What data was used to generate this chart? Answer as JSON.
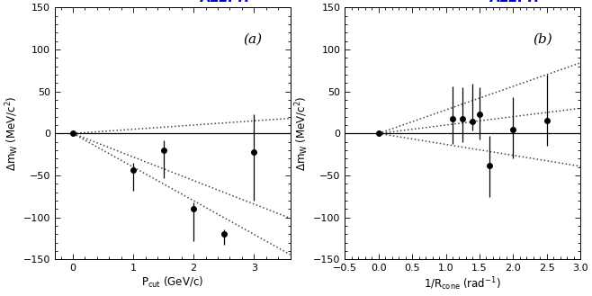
{
  "panel_a": {
    "x": [
      0.0,
      1.0,
      1.5,
      2.0,
      2.5,
      3.0
    ],
    "y": [
      0.0,
      -43.0,
      -20.0,
      -90.0,
      -120.0,
      -22.0
    ],
    "yerr_lo": [
      3.0,
      25.0,
      33.0,
      38.0,
      12.0,
      58.0
    ],
    "yerr_hi": [
      3.0,
      8.0,
      12.0,
      8.0,
      6.0,
      45.0
    ],
    "dotted_slopes": [
      5.0,
      -28.0,
      -40.0
    ],
    "xlabel": "P$_{\\rm cut}$ (GeV/c)",
    "ylabel": "$\\Delta$m$_{\\rm W}$ (MeV/c$^2$)",
    "xlim": [
      -0.3,
      3.6
    ],
    "ylim": [
      -150,
      150
    ],
    "label": "(a)"
  },
  "panel_b": {
    "x": [
      0.0,
      1.1,
      1.25,
      1.4,
      1.5,
      1.65,
      2.0,
      2.5
    ],
    "y": [
      0.0,
      18.0,
      17.0,
      14.0,
      23.0,
      -38.0,
      5.0,
      15.0
    ],
    "yerr_lo": [
      3.0,
      30.0,
      27.0,
      10.0,
      30.0,
      38.0,
      35.0,
      30.0
    ],
    "yerr_hi": [
      3.0,
      38.0,
      38.0,
      45.0,
      32.0,
      35.0,
      38.0,
      55.0
    ],
    "dotted_slopes": [
      28.0,
      10.0,
      -13.0
    ],
    "xlabel": "1/R$_{\\rm cone}$ (rad$^{-1}$)",
    "ylabel": "$\\Delta$m$_{\\rm W}$ (MeV/c$^2$)",
    "xlim": [
      -0.5,
      3.0
    ],
    "ylim": [
      -150,
      150
    ],
    "label": "(b)"
  },
  "aleph_color": "#0000cc",
  "aleph_fontsize": 11,
  "dot_color": "black",
  "dot_size": 4,
  "dotted_color": "#444444",
  "zero_line_color": "black",
  "background_color": "white"
}
